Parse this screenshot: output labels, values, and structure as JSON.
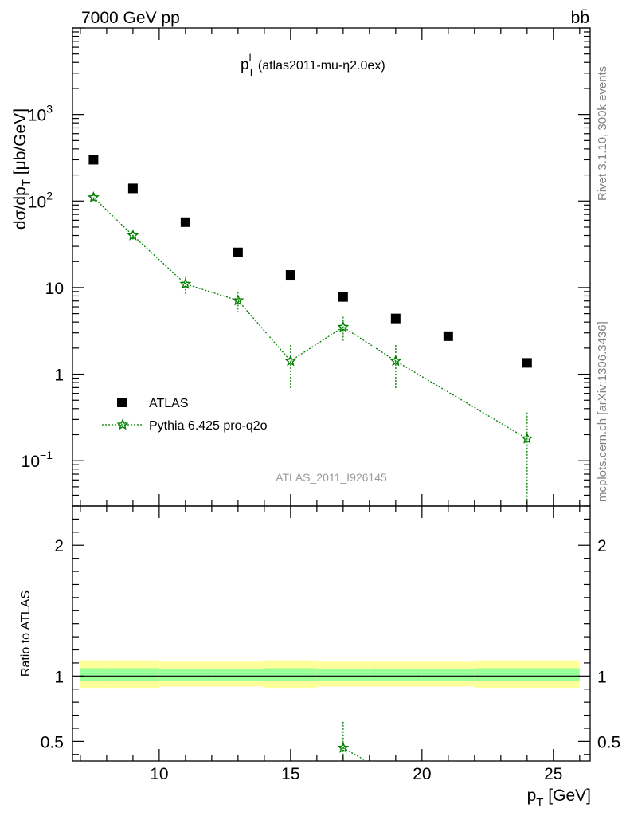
{
  "header": {
    "energy_label": "7000 GeV pp",
    "process_label": "bb̄",
    "side_rivet": "Rivet 3.1.10,  300k events",
    "side_mcplots": "mcplots.cern.ch [arXiv:1306.3436]"
  },
  "chart_data": [
    {
      "type": "scatter",
      "title_main": "p",
      "title_sup": "l",
      "title_sub": "T",
      "title_rest": " (atlas2011-mu-η2.0ex)",
      "ylabel": "dσ/dp_T [μb/GeV]",
      "ylabel_parts": {
        "a": "dσ/dp",
        "sub": "T",
        "b": " [μb/GeV]"
      },
      "yscale": "log",
      "xlim": [
        6.7,
        26.4
      ],
      "ylim": [
        0.03,
        10000
      ],
      "y_ticks": [
        {
          "v": 0.1,
          "base": "10",
          "exp": "−1"
        },
        {
          "v": 1,
          "base": "1",
          "exp": ""
        },
        {
          "v": 10,
          "base": "10",
          "exp": ""
        },
        {
          "v": 100,
          "base": "10",
          "exp": "2"
        },
        {
          "v": 1000,
          "base": "10",
          "exp": "3"
        }
      ],
      "analysis_label": "ATLAS_2011_I926145",
      "legend_position": "lower-left",
      "series": [
        {
          "name": "ATLAS",
          "color": "#000000",
          "marker": "square",
          "x": [
            7.5,
            9,
            11,
            13,
            15,
            17,
            19,
            21,
            24
          ],
          "y": [
            300,
            140,
            57,
            25.5,
            14,
            7.8,
            4.4,
            2.75,
            1.35
          ]
        },
        {
          "name": "Pythia 6.425 pro-q2o",
          "color": "#007f00",
          "marker": "star",
          "line": "dotted",
          "x": [
            7.5,
            9,
            11,
            13,
            15,
            17,
            19,
            24
          ],
          "y": [
            110,
            40,
            11,
            7.1,
            1.42,
            3.5,
            1.42,
            0.18
          ],
          "y_err": [
            10,
            4,
            2.5,
            1.8,
            0.75,
            1.1,
            0.75,
            0.18
          ]
        }
      ]
    },
    {
      "type": "line",
      "ylabel": "Ratio to ATLAS",
      "xlabel_parts": {
        "a": "p",
        "sub": "T",
        "b": " [GeV]"
      },
      "xlim": [
        6.7,
        26.4
      ],
      "ylim": [
        0.35,
        2.3
      ],
      "x_ticks": [
        10,
        15,
        20,
        25
      ],
      "y_ticks": [
        0.5,
        1,
        2
      ],
      "y_tick_labels": [
        "0.5",
        "1",
        "2"
      ],
      "bands": {
        "bins": [
          7,
          8,
          10,
          12,
          14,
          16,
          18,
          20,
          22,
          26
        ],
        "outer_color": "#ffff99",
        "inner_color": "#99ff99",
        "outer": [
          [
            0.91,
            1.12
          ],
          [
            0.91,
            1.12
          ],
          [
            0.92,
            1.11
          ],
          [
            0.92,
            1.11
          ],
          [
            0.91,
            1.12
          ],
          [
            0.92,
            1.11
          ],
          [
            0.92,
            1.11
          ],
          [
            0.92,
            1.11
          ],
          [
            0.91,
            1.12
          ]
        ],
        "inner": [
          [
            0.96,
            1.06
          ],
          [
            0.96,
            1.06
          ],
          [
            0.965,
            1.055
          ],
          [
            0.965,
            1.055
          ],
          [
            0.96,
            1.06
          ],
          [
            0.965,
            1.055
          ],
          [
            0.965,
            1.055
          ],
          [
            0.965,
            1.055
          ],
          [
            0.96,
            1.06
          ]
        ]
      },
      "series": [
        {
          "name": "Pythia 6.425 pro-q2o",
          "color": "#007f00",
          "marker": "star",
          "x": [
            17,
            17.8
          ],
          "y": [
            0.45,
            0.36
          ],
          "y_err": [
            0.2,
            0
          ]
        }
      ]
    }
  ]
}
